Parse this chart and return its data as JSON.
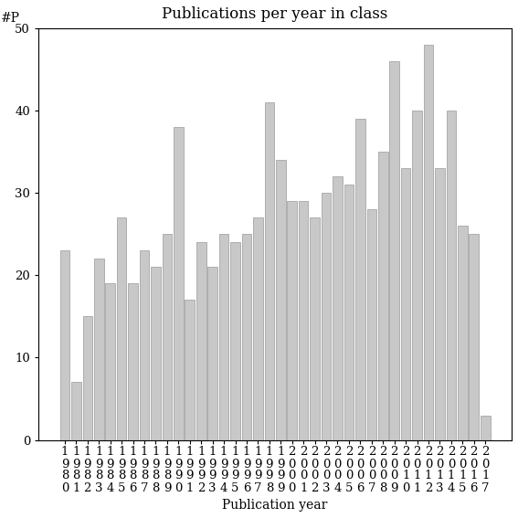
{
  "title": "Publications per year in class",
  "xlabel": "Publication year",
  "ylabel": "#P",
  "years": [
    "1980",
    "1981",
    "1982",
    "1983",
    "1984",
    "1985",
    "1986",
    "1987",
    "1988",
    "1989",
    "1990",
    "1991",
    "1992",
    "1993",
    "1994",
    "1995",
    "1996",
    "1997",
    "1998",
    "1999",
    "2000",
    "2001",
    "2002",
    "2003",
    "2004",
    "2005",
    "2006",
    "2007",
    "2008",
    "2009",
    "2010",
    "2011",
    "2012",
    "2013",
    "2014",
    "2015",
    "2016",
    "2017"
  ],
  "values": [
    23,
    7,
    15,
    22,
    19,
    27,
    19,
    23,
    21,
    25,
    38,
    17,
    24,
    21,
    25,
    24,
    25,
    27,
    41,
    34,
    29,
    29,
    27,
    30,
    32,
    31,
    39,
    28,
    35,
    46,
    33,
    40,
    48,
    33,
    40,
    26,
    25,
    3
  ],
  "bar_color": "#c8c8c8",
  "bar_edgecolor": "#999999",
  "ylim": [
    0,
    50
  ],
  "yticks": [
    0,
    10,
    20,
    30,
    40,
    50
  ],
  "background_color": "#ffffff",
  "title_fontsize": 12,
  "axis_label_fontsize": 10,
  "tick_fontsize": 9.5
}
